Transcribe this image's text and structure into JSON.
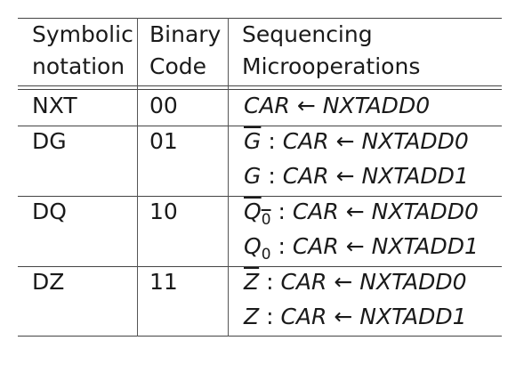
{
  "table": {
    "header": {
      "col1": [
        "Symbolic",
        "notation"
      ],
      "col2": [
        "Binary",
        "Code"
      ],
      "col3": [
        "Sequencing",
        "Microoperations"
      ]
    },
    "rows": [
      {
        "symbol": "NXT",
        "code": "00",
        "ops": [
          {
            "cond": "",
            "cond_bar": false,
            "cond_sub": "",
            "target": "CAR",
            "arrow": "←",
            "source": "NXTADD0"
          }
        ]
      },
      {
        "symbol": "DG",
        "code": "01",
        "ops": [
          {
            "cond": "G",
            "cond_bar": true,
            "cond_sub": "",
            "target": "CAR",
            "arrow": "←",
            "source": "NXTADD0"
          },
          {
            "cond": "G",
            "cond_bar": false,
            "cond_sub": "",
            "target": "CAR",
            "arrow": "←",
            "source": "NXTADD1"
          }
        ]
      },
      {
        "symbol": "DQ",
        "code": "10",
        "ops": [
          {
            "cond": "Q",
            "cond_bar": true,
            "cond_sub": "0",
            "target": "CAR",
            "arrow": "←",
            "source": "NXTADD0"
          },
          {
            "cond": "Q",
            "cond_bar": false,
            "cond_sub": "0",
            "target": "CAR",
            "arrow": "←",
            "source": "NXTADD1"
          }
        ]
      },
      {
        "symbol": "DZ",
        "code": "11",
        "ops": [
          {
            "cond": "Z",
            "cond_bar": true,
            "cond_sub": "",
            "target": "CAR",
            "arrow": "←",
            "source": "NXTADD0"
          },
          {
            "cond": "Z",
            "cond_bar": false,
            "cond_sub": "",
            "target": "CAR",
            "arrow": "←",
            "source": "NXTADD1"
          }
        ]
      }
    ],
    "colon": ":"
  }
}
